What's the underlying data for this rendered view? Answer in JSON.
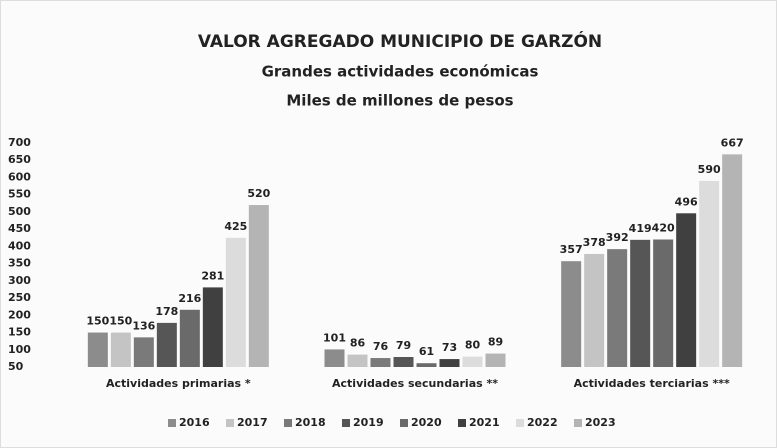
{
  "chart_data": {
    "type": "bar",
    "title": "VALOR AGREGADO MUNICIPIO DE GARZÓN",
    "subtitle": [
      "Grandes actividades económicas",
      "Miles de millones de pesos"
    ],
    "categories": [
      "Actividades primarias *",
      "Actividades secundarias **",
      "Actividades terciarias ***"
    ],
    "series": [
      {
        "name": "2016",
        "color": "#8c8c8c",
        "values": [
          150,
          101,
          357
        ]
      },
      {
        "name": "2017",
        "color": "#c4c4c4",
        "values": [
          150,
          86,
          378
        ]
      },
      {
        "name": "2018",
        "color": "#7a7a7a",
        "values": [
          136,
          76,
          392
        ]
      },
      {
        "name": "2019",
        "color": "#565656",
        "values": [
          178,
          79,
          419
        ]
      },
      {
        "name": "2020",
        "color": "#6a6a6a",
        "values": [
          216,
          61,
          420
        ]
      },
      {
        "name": "2021",
        "color": "#404040",
        "values": [
          281,
          73,
          496
        ]
      },
      {
        "name": "2022",
        "color": "#dcdcdc",
        "values": [
          425,
          80,
          590
        ]
      },
      {
        "name": "2023",
        "color": "#b4b4b4",
        "values": [
          520,
          89,
          667
        ]
      }
    ],
    "ylim": [
      50,
      700
    ],
    "yticks": [
      50,
      100,
      150,
      200,
      250,
      300,
      350,
      400,
      450,
      500,
      550,
      600,
      650,
      700
    ],
    "grid": false,
    "legend": "bottom"
  }
}
